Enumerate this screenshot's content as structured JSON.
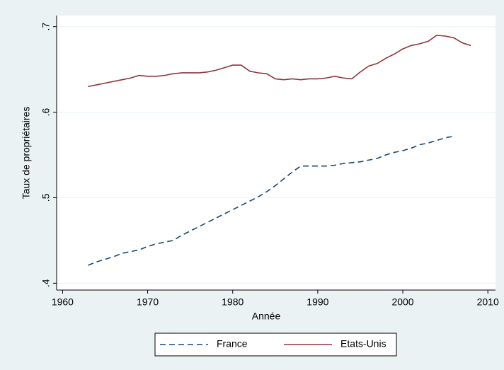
{
  "chart_data": {
    "type": "line",
    "xlabel": "Année",
    "ylabel": "Taux de propriétaires",
    "x": [
      1963,
      1964,
      1965,
      1966,
      1967,
      1968,
      1969,
      1970,
      1971,
      1972,
      1973,
      1974,
      1975,
      1976,
      1977,
      1978,
      1979,
      1980,
      1981,
      1982,
      1983,
      1984,
      1985,
      1986,
      1987,
      1988,
      1989,
      1990,
      1991,
      1992,
      1993,
      1994,
      1995,
      1996,
      1997,
      1998,
      1999,
      2000,
      2001,
      2002,
      2003,
      2004,
      2005,
      2006,
      2007,
      2008
    ],
    "series": [
      {
        "name": "France",
        "color": "#1a476f",
        "dashed": true,
        "values": [
          0.421,
          0.425,
          0.428,
          0.431,
          0.435,
          0.437,
          0.439,
          0.443,
          0.446,
          0.448,
          0.45,
          0.456,
          0.461,
          0.466,
          0.471,
          0.476,
          0.481,
          0.486,
          0.491,
          0.496,
          0.501,
          0.507,
          0.514,
          0.522,
          0.53,
          0.537,
          0.537,
          0.537,
          0.537,
          0.538,
          0.54,
          0.541,
          0.542,
          0.544,
          0.546,
          0.55,
          0.553,
          0.555,
          0.558,
          0.562,
          0.564,
          0.567,
          0.57,
          0.572,
          null,
          null
        ]
      },
      {
        "name": "Etats-Unis",
        "color": "#90353b",
        "dashed": false,
        "values": [
          0.63,
          0.632,
          0.634,
          0.636,
          0.638,
          0.64,
          0.643,
          0.642,
          0.642,
          0.643,
          0.645,
          0.646,
          0.646,
          0.646,
          0.647,
          0.649,
          0.652,
          0.655,
          0.655,
          0.648,
          0.646,
          0.645,
          0.639,
          0.638,
          0.639,
          0.638,
          0.639,
          0.639,
          0.64,
          0.642,
          0.64,
          0.639,
          0.647,
          0.654,
          0.657,
          0.663,
          0.668,
          0.674,
          0.678,
          0.68,
          0.683,
          0.69,
          0.689,
          0.687,
          0.681,
          0.678
        ]
      }
    ],
    "xlim": [
      1959.3,
      2010.9
    ],
    "xticks": [
      1960,
      1970,
      1980,
      1990,
      2000,
      2010
    ],
    "ylim": [
      0.392,
      0.713
    ],
    "yticks": [
      {
        "value": 0.4,
        "label": ".4"
      },
      {
        "value": 0.5,
        "label": ".5"
      },
      {
        "value": 0.6,
        "label": ".6"
      },
      {
        "value": 0.7,
        "label": ".7"
      }
    ],
    "grid": true,
    "legend": "bottom"
  }
}
